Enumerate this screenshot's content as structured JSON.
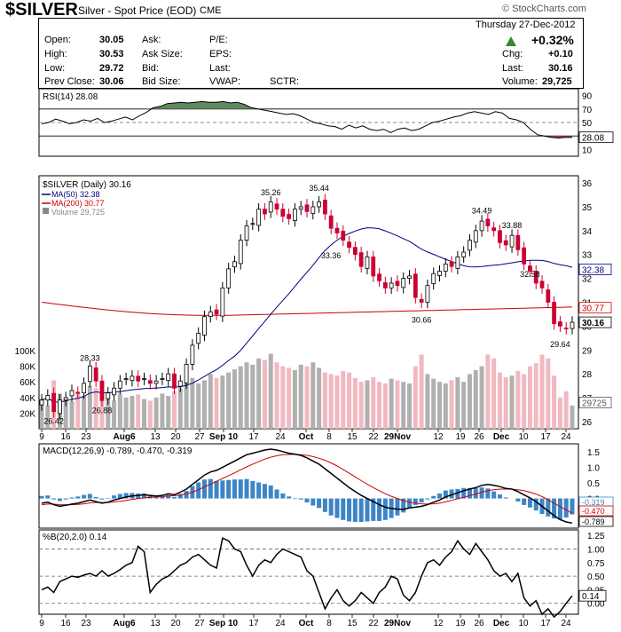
{
  "header": {
    "symbol": "$SILVER",
    "name": "Silver - Spot Price (EOD)",
    "exchange": "CME",
    "watermark": "© StockCharts.com",
    "date": "Thursday  27-Dec-2012",
    "change_pct": "+0.32%",
    "quote": {
      "open_label": "Open:",
      "open": "30.05",
      "high_label": "High:",
      "high": "30.53",
      "low_label": "Low:",
      "low": "29.72",
      "prev_label": "Prev Close:",
      "prev": "30.06",
      "ask_label": "Ask:",
      "asksize_label": "Ask Size:",
      "bid_label": "Bid:",
      "bidsize_label": "Bid Size:",
      "pe_label": "P/E:",
      "eps_label": "EPS:",
      "last_label_mid": "Last:",
      "vwap_label": "VWAP:",
      "sctr_label": "SCTR:",
      "chg_label": "Chg:",
      "chg": "+0.10",
      "last_label": "Last:",
      "last": "30.16",
      "volume_label": "Volume:",
      "volume": "29,725"
    }
  },
  "colors": {
    "up": "#000000",
    "down": "#cc0033",
    "ma50": "#000080",
    "ma200": "#cc0000",
    "rsi_fill": "#5f8a5f",
    "macd_hist": "#3d85c6",
    "vol_up": "#b0b0b0",
    "vol_down": "#f2b8c0",
    "signal": "#cc0000"
  },
  "chart_data": [
    {
      "type": "line",
      "title": "RSI(14) 28.08",
      "y_ticks": [
        "90",
        "70",
        "50",
        "30",
        "10"
      ],
      "ylim": [
        0,
        100
      ],
      "levels": [
        70,
        50,
        30
      ],
      "last_label": "28.08",
      "values": [
        48,
        50,
        55,
        52,
        48,
        50,
        54,
        52,
        56,
        50,
        52,
        55,
        58,
        54,
        60,
        65,
        72,
        74,
        78,
        79,
        80,
        79,
        80,
        81,
        80,
        80,
        81,
        79,
        80,
        77,
        72,
        70,
        68,
        66,
        64,
        62,
        63,
        60,
        55,
        50,
        48,
        45,
        44,
        40,
        46,
        42,
        45,
        40,
        38,
        40,
        35,
        40,
        42,
        38,
        40,
        45,
        50,
        52,
        55,
        58,
        60,
        64,
        66,
        64,
        62,
        66,
        64,
        56,
        54,
        50,
        40,
        32,
        30,
        28,
        27,
        28,
        28.08
      ]
    },
    {
      "type": "candlestick",
      "title": "$SILVER (Daily) 30.16",
      "legend": [
        {
          "label": "MA(50) 32.38",
          "color": "#000080"
        },
        {
          "label": "MA(200) 30.77",
          "color": "#cc0000"
        },
        {
          "label": "Volume 29,725",
          "color": "#888888"
        }
      ],
      "y_ticks": [
        "36",
        "35",
        "34",
        "33",
        "32",
        "31",
        "30",
        "29",
        "28",
        "27",
        "26"
      ],
      "ylim": [
        25.7,
        36.3
      ],
      "vol_ticks": [
        "100K",
        "80K",
        "60K",
        "40K",
        "20K"
      ],
      "vol_max": 125000,
      "x_ticks": [
        "9",
        "16",
        "23",
        "Aug6",
        "13",
        "20",
        "27",
        "Sep 10",
        "17",
        "24",
        "Oct",
        "8",
        "15",
        "22",
        "29Nov",
        "12",
        "19",
        "26",
        "Dec",
        "10",
        "17",
        "24"
      ],
      "annotations": [
        "26.42",
        "28.33",
        "26.88",
        "35.26",
        "35.44",
        "33.36",
        "30.66",
        "34.49",
        "32.58",
        "33.88",
        "29.64"
      ],
      "axis_tags": [
        {
          "label": "32.38",
          "color": "#000080",
          "value": 32.38
        },
        {
          "label": "30.77",
          "color": "#cc0000",
          "value": 30.77
        },
        {
          "label": "30.16",
          "color": "#000000",
          "value": 30.16
        },
        {
          "label": "29725",
          "color": "#555555",
          "value": 26.8
        }
      ],
      "closes": [
        26.9,
        27.1,
        26.42,
        26.9,
        27.0,
        27.3,
        27.2,
        27.6,
        28.33,
        27.7,
        26.88,
        27.2,
        27.4,
        27.7,
        27.8,
        27.9,
        27.7,
        27.8,
        27.6,
        27.7,
        27.8,
        28.0,
        27.4,
        27.7,
        28.4,
        29.2,
        29.7,
        30.4,
        30.6,
        30.5,
        31.6,
        32.4,
        32.7,
        33.6,
        34.2,
        34.3,
        34.9,
        34.7,
        35.2,
        34.9,
        34.6,
        34.5,
        34.9,
        35.0,
        34.8,
        35.0,
        35.2,
        34.7,
        34.1,
        33.9,
        33.6,
        33.3,
        33.0,
        32.5,
        32.9,
        32.1,
        31.9,
        31.6,
        31.8,
        31.7,
        32.0,
        32.1,
        31.2,
        31.0,
        31.7,
        32.2,
        32.3,
        32.6,
        32.5,
        32.9,
        33.1,
        33.6,
        34.0,
        34.4,
        34.2,
        34.0,
        33.5,
        33.4,
        33.8,
        33.2,
        32.6,
        32.3,
        31.8,
        31.6,
        31.0,
        30.1,
        30.0,
        29.9,
        30.16
      ],
      "volumes": [
        38000,
        30000,
        62000,
        45000,
        40000,
        35000,
        48000,
        42000,
        55000,
        52000,
        60000,
        38000,
        36000,
        45000,
        40000,
        42000,
        44000,
        38000,
        36000,
        40000,
        45000,
        42000,
        48000,
        52000,
        60000,
        65000,
        58000,
        62000,
        70000,
        65000,
        68000,
        72000,
        76000,
        80000,
        85000,
        82000,
        90000,
        88000,
        96000,
        85000,
        80000,
        78000,
        75000,
        82000,
        80000,
        85000,
        78000,
        72000,
        70000,
        68000,
        74000,
        72000,
        65000,
        60000,
        62000,
        66000,
        60000,
        58000,
        64000,
        62000,
        60000,
        58000,
        80000,
        95000,
        70000,
        64000,
        60000,
        58000,
        62000,
        66000,
        60000,
        70000,
        75000,
        80000,
        95000,
        90000,
        72000,
        66000,
        68000,
        74000,
        70000,
        80000,
        84000,
        95000,
        90000,
        68000,
        40000,
        48000,
        29725
      ]
    },
    {
      "type": "line",
      "title": "MACD(12,26,9) -0.789, -0.470, -0.319",
      "y_ticks": [
        "1.5",
        "1.0",
        "0.5",
        "0.0",
        "-0.5"
      ],
      "ylim": [
        -0.95,
        1.75
      ],
      "last_labels": [
        "-0.319",
        "-0.470",
        "-0.789"
      ],
      "macd": [
        -0.15,
        -0.12,
        -0.2,
        -0.25,
        -0.22,
        -0.18,
        -0.15,
        -0.1,
        -0.05,
        -0.1,
        -0.15,
        -0.12,
        -0.05,
        0.0,
        0.05,
        0.08,
        0.1,
        0.12,
        0.1,
        0.08,
        0.1,
        0.15,
        0.12,
        0.2,
        0.3,
        0.45,
        0.6,
        0.75,
        0.85,
        0.9,
        1.0,
        1.1,
        1.2,
        1.3,
        1.4,
        1.45,
        1.5,
        1.55,
        1.58,
        1.55,
        1.5,
        1.45,
        1.42,
        1.38,
        1.3,
        1.2,
        1.1,
        0.95,
        0.8,
        0.65,
        0.5,
        0.35,
        0.22,
        0.1,
        0.0,
        -0.1,
        -0.2,
        -0.28,
        -0.32,
        -0.34,
        -0.35,
        -0.3,
        -0.28,
        -0.25,
        -0.2,
        -0.12,
        -0.05,
        0.05,
        0.12,
        0.18,
        0.25,
        0.3,
        0.35,
        0.42,
        0.45,
        0.42,
        0.38,
        0.32,
        0.3,
        0.22,
        0.12,
        0.02,
        -0.1,
        -0.25,
        -0.4,
        -0.55,
        -0.68,
        -0.75,
        -0.789
      ],
      "signal": [
        -0.2,
        -0.18,
        -0.18,
        -0.2,
        -0.2,
        -0.2,
        -0.19,
        -0.17,
        -0.14,
        -0.13,
        -0.13,
        -0.13,
        -0.11,
        -0.09,
        -0.06,
        -0.03,
        0.0,
        0.02,
        0.04,
        0.05,
        0.06,
        0.08,
        0.09,
        0.11,
        0.15,
        0.2,
        0.28,
        0.37,
        0.46,
        0.55,
        0.64,
        0.73,
        0.82,
        0.92,
        1.01,
        1.1,
        1.18,
        1.26,
        1.32,
        1.37,
        1.4,
        1.41,
        1.41,
        1.4,
        1.38,
        1.34,
        1.29,
        1.22,
        1.14,
        1.04,
        0.93,
        0.81,
        0.69,
        0.57,
        0.46,
        0.35,
        0.25,
        0.15,
        0.07,
        0.0,
        -0.07,
        -0.12,
        -0.15,
        -0.17,
        -0.18,
        -0.17,
        -0.15,
        -0.11,
        -0.06,
        -0.01,
        0.04,
        0.09,
        0.14,
        0.2,
        0.25,
        0.28,
        0.3,
        0.3,
        0.3,
        0.28,
        0.25,
        0.2,
        0.14,
        0.06,
        -0.04,
        -0.15,
        -0.26,
        -0.37,
        -0.47
      ]
    },
    {
      "type": "line",
      "title": "%B(20,2.0) 0.14",
      "y_ticks": [
        "1.25",
        "1.00",
        "0.75",
        "0.50",
        "0.25",
        "0.00"
      ],
      "ylim": [
        -0.2,
        1.35
      ],
      "levels": [
        1.0,
        0.5,
        0.0
      ],
      "last_label": "0.14",
      "x_ticks": [
        "9",
        "16",
        "23",
        "Aug6",
        "13",
        "20",
        "27",
        "Sep 10",
        "17",
        "24",
        "Oct",
        "8",
        "15",
        "22",
        "29Nov",
        "12",
        "19",
        "26",
        "Dec",
        "10",
        "17",
        "24"
      ],
      "values": [
        0.25,
        0.3,
        0.2,
        0.4,
        0.45,
        0.5,
        0.48,
        0.52,
        0.55,
        0.5,
        0.6,
        0.5,
        0.55,
        0.62,
        0.7,
        0.75,
        1.05,
        0.95,
        0.2,
        0.35,
        0.45,
        0.5,
        0.6,
        0.7,
        0.75,
        0.85,
        0.9,
        0.8,
        0.7,
        0.65,
        1.2,
        1.15,
        1.0,
        0.95,
        0.7,
        0.5,
        0.7,
        0.8,
        0.75,
        0.9,
        1.0,
        0.95,
        0.9,
        0.85,
        0.6,
        0.5,
        0.2,
        -0.1,
        0.1,
        0.25,
        0.05,
        -0.05,
        0.05,
        0.2,
        0.1,
        0.0,
        0.2,
        0.3,
        0.5,
        0.45,
        0.15,
        0.05,
        0.2,
        0.5,
        0.75,
        0.8,
        0.7,
        0.85,
        0.95,
        1.15,
        1.0,
        0.9,
        1.1,
        0.95,
        0.8,
        0.6,
        0.5,
        0.55,
        0.4,
        0.55,
        0.1,
        -0.05,
        0.05,
        -0.2,
        -0.1,
        -0.25,
        -0.15,
        0.0,
        0.14
      ]
    }
  ]
}
